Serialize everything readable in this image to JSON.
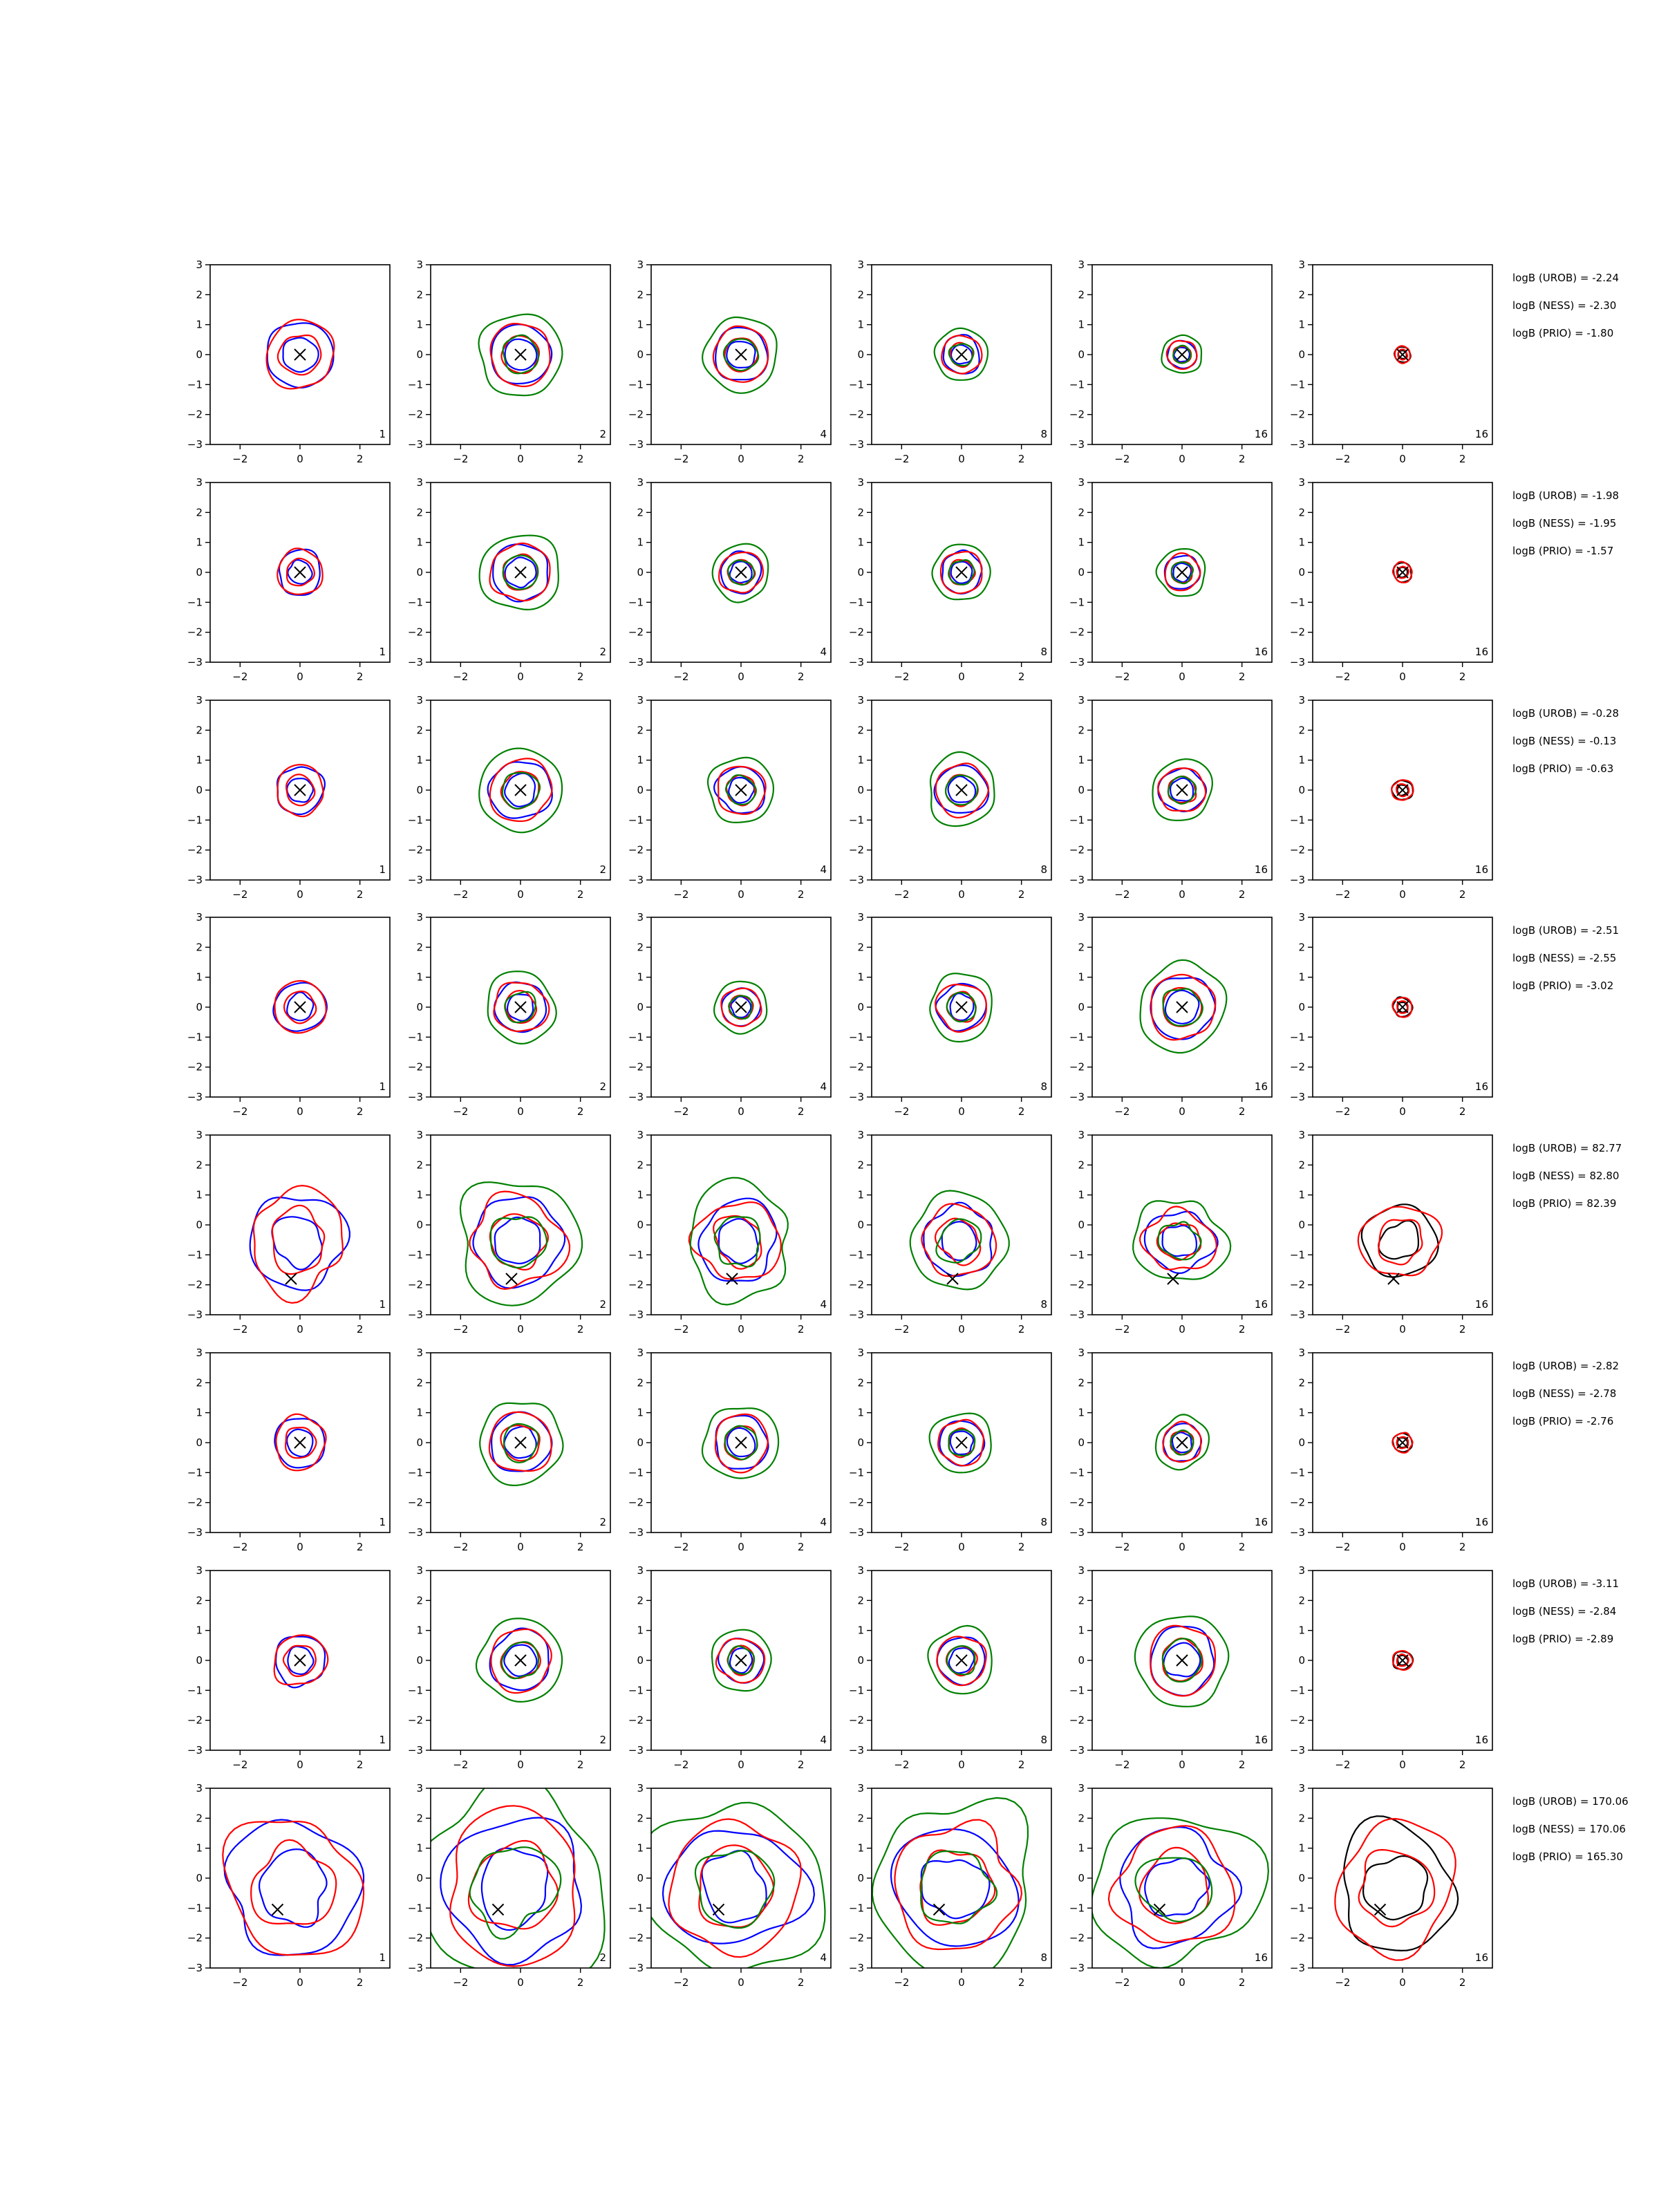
{
  "chart_data": {
    "type": "contour-grid",
    "rows": 8,
    "cols": 6,
    "xlim": [
      -3,
      3
    ],
    "ylim": [
      -3,
      3
    ],
    "x_ticks": [
      "−2",
      "0",
      "2"
    ],
    "y_ticks": [
      "3",
      "2",
      "1",
      "0",
      "−1",
      "−2",
      "−3"
    ],
    "colors": {
      "blue": "#0000ff",
      "red": "#ff0000",
      "green": "#008000",
      "black": "#000000"
    },
    "panel_labels": [
      "1",
      "2",
      "4",
      "8",
      "16",
      "16"
    ],
    "panels_series": [
      [
        "blue",
        "red"
      ],
      [
        "blue",
        "red",
        "green"
      ],
      [
        "blue",
        "red",
        "green"
      ],
      [
        "blue",
        "red",
        "green"
      ],
      [
        "blue",
        "red",
        "green"
      ],
      [
        "black",
        "red"
      ]
    ],
    "rows_data": [
      {
        "marker": [
          0,
          0
        ],
        "scale": [
          1.05,
          0.95,
          0.85,
          0.6,
          0.45,
          0.25
        ],
        "logB": {
          "urob": "logB (UROB) = -2.24",
          "ness": "logB (NESS) = -2.30",
          "prio": "logB (PRIO) = -1.80"
        }
      },
      {
        "marker": [
          0,
          0
        ],
        "scale": [
          0.7,
          0.9,
          0.65,
          0.65,
          0.55,
          0.3
        ],
        "logB": {
          "urob": "logB (UROB) = -1.98",
          "ness": "logB (NESS) = -1.95",
          "prio": "logB (PRIO) = -1.57"
        }
      },
      {
        "marker": [
          0,
          0
        ],
        "scale": [
          0.75,
          0.95,
          0.75,
          0.8,
          0.7,
          0.32
        ],
        "logB": {
          "urob": "logB (UROB) = -0.28",
          "ness": "logB (NESS) = -0.13",
          "prio": "logB (PRIO) = -0.63"
        }
      },
      {
        "marker": [
          0,
          0
        ],
        "scale": [
          0.8,
          0.8,
          0.6,
          0.75,
          1.0,
          0.3
        ],
        "logB": {
          "urob": "logB (UROB) = -2.51",
          "ness": "logB (NESS) = -2.55",
          "prio": "logB (PRIO) = -3.02"
        }
      },
      {
        "marker": [
          -0.3,
          -1.8
        ],
        "scale": [
          1.5,
          1.4,
          1.25,
          1.1,
          1.0,
          1.15
        ],
        "logB": {
          "urob": "logB (UROB) = 82.77",
          "ness": "logB (NESS) = 82.80",
          "prio": "logB (PRIO) = 82.39"
        }
      },
      {
        "marker": [
          0,
          0
        ],
        "scale": [
          0.8,
          0.95,
          0.85,
          0.7,
          0.6,
          0.3
        ],
        "logB": {
          "urob": "logB (UROB) = -2.82",
          "ness": "logB (NESS) = -2.78",
          "prio": "logB (PRIO) = -2.76"
        }
      },
      {
        "marker": [
          0,
          0
        ],
        "scale": [
          0.8,
          0.95,
          0.7,
          0.75,
          1.05,
          0.3
        ],
        "logB": {
          "urob": "logB (UROB) = -3.11",
          "ness": "logB (NESS) = -2.84",
          "prio": "logB (PRIO) = -2.89"
        }
      },
      {
        "marker": [
          -0.75,
          -1.05
        ],
        "scale": [
          2.1,
          2.2,
          2.0,
          1.9,
          1.8,
          1.9
        ],
        "logB": {
          "urob": "logB (UROB) = 170.06",
          "ness": "logB (NESS) = 170.06",
          "prio": "logB (PRIO) = 165.30"
        }
      }
    ]
  }
}
